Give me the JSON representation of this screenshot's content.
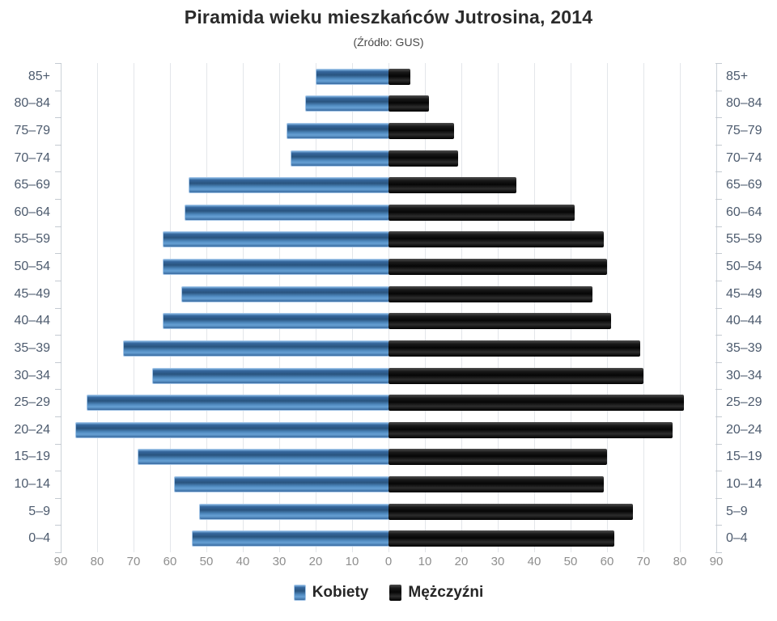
{
  "title": "Piramida wieku mieszkańców Jutrosina, 2014",
  "subtitle": "(Źródło: GUS)",
  "legend": {
    "women_label": "Kobiety",
    "men_label": "Mężczyźni"
  },
  "colors": {
    "women_bar": "#4a81b6",
    "men_bar": "#161616",
    "gridline": "#e3e6ea",
    "axis_numbers": "#8e8e8e",
    "age_labels": "#4d5b6e",
    "title_text": "#2b2b2b"
  },
  "chart_data": {
    "type": "bar",
    "subtype": "population-pyramid",
    "title": "Piramida wieku mieszkańców Jutrosina, 2014",
    "subtitle": "(Źródło: GUS)",
    "categories": [
      "85+",
      "80–84",
      "75–79",
      "70–74",
      "65–69",
      "60–64",
      "55–59",
      "50–54",
      "45–49",
      "40–44",
      "35–39",
      "30–34",
      "25–29",
      "20–24",
      "15–19",
      "10–14",
      "5–9",
      "0–4"
    ],
    "series": [
      {
        "name": "Kobiety",
        "side": "left",
        "values": [
          20,
          23,
          28,
          27,
          55,
          56,
          62,
          62,
          57,
          62,
          73,
          65,
          83,
          86,
          69,
          59,
          52,
          54
        ]
      },
      {
        "name": "Mężczyźni",
        "side": "right",
        "values": [
          6,
          11,
          18,
          19,
          35,
          51,
          59,
          60,
          56,
          61,
          69,
          70,
          81,
          78,
          60,
          59,
          67,
          62
        ]
      }
    ],
    "xlim": [
      0,
      90
    ],
    "tick_interval": 10,
    "x_axis_labels": [
      "90",
      "80",
      "70",
      "60",
      "50",
      "40",
      "30",
      "20",
      "10",
      "0",
      "10",
      "20",
      "30",
      "40",
      "50",
      "60",
      "70",
      "80",
      "90"
    ],
    "grid": true,
    "legend_position": "bottom"
  }
}
